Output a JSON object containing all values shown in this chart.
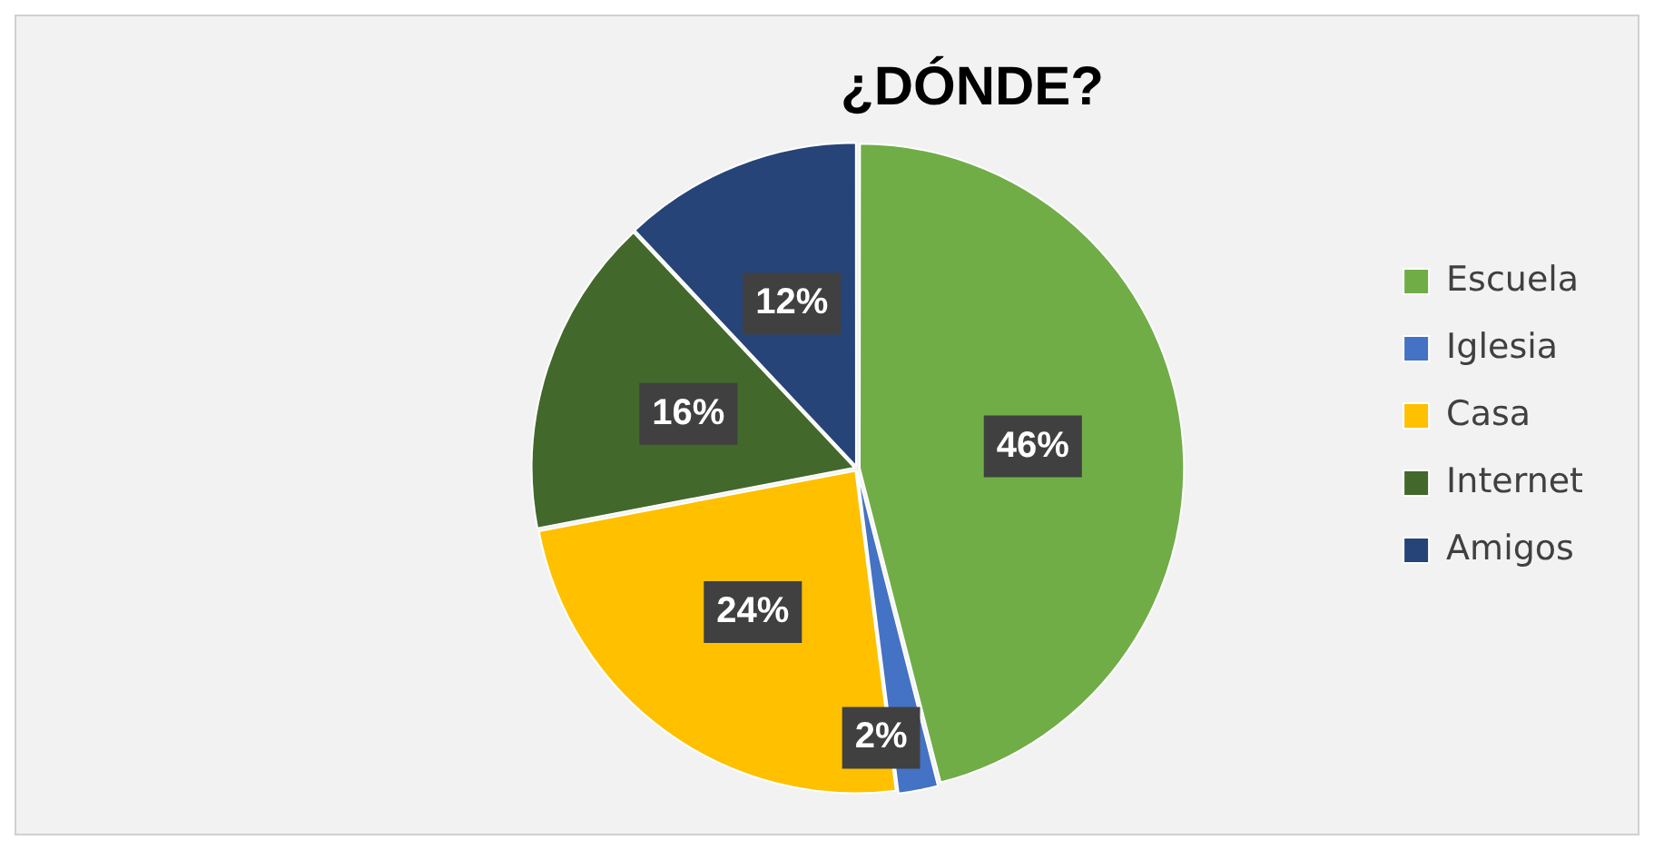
{
  "chart_data": {
    "type": "pie",
    "title": "¿DÓNDE?",
    "categories": [
      "Escuela",
      "Iglesia",
      "Casa",
      "Internet",
      "Amigos"
    ],
    "values": [
      46,
      2,
      24,
      16,
      12
    ],
    "colors": [
      "#70ad47",
      "#4472c4",
      "#ffc000",
      "#43682b",
      "#264478"
    ],
    "value_labels": [
      "46%",
      "2%",
      "24%",
      "16%",
      "12%"
    ],
    "legend": "right"
  }
}
